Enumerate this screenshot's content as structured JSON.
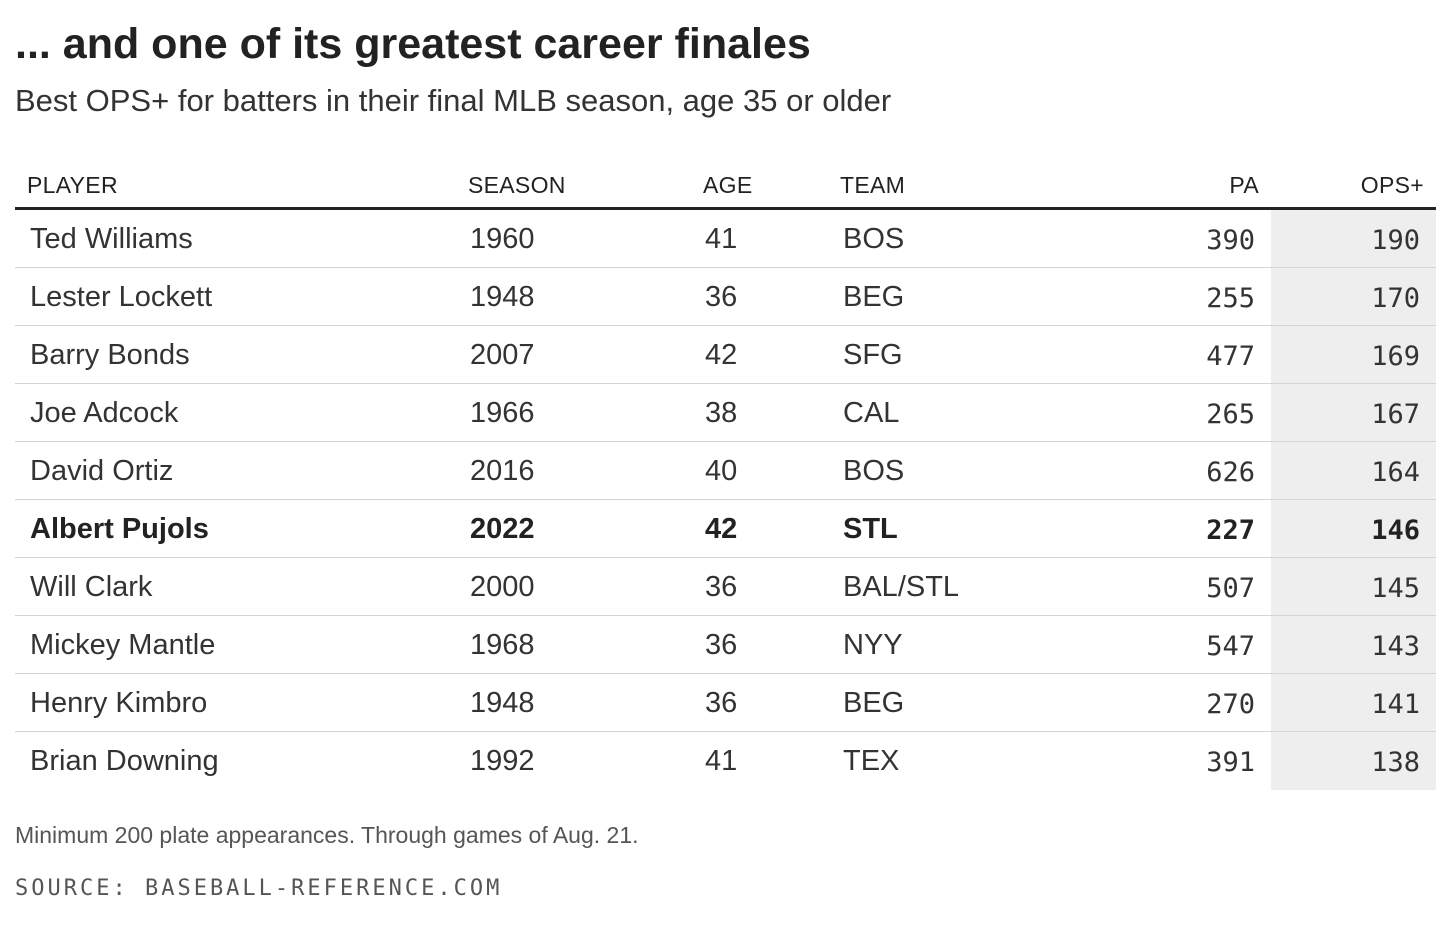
{
  "chart_data": {
    "type": "table",
    "title": "... and one of its greatest career finales",
    "subtitle": "Best OPS+ for batters in their final MLB season, age 35 or older",
    "columns": [
      "PLAYER",
      "SEASON",
      "AGE",
      "TEAM",
      "PA",
      "OPS+"
    ],
    "rows": [
      {
        "player": "Ted Williams",
        "season": "1960",
        "age": "41",
        "team": "BOS",
        "pa": "390",
        "ops": "190",
        "highlight": false
      },
      {
        "player": "Lester Lockett",
        "season": "1948",
        "age": "36",
        "team": "BEG",
        "pa": "255",
        "ops": "170",
        "highlight": false
      },
      {
        "player": "Barry Bonds",
        "season": "2007",
        "age": "42",
        "team": "SFG",
        "pa": "477",
        "ops": "169",
        "highlight": false
      },
      {
        "player": "Joe Adcock",
        "season": "1966",
        "age": "38",
        "team": "CAL",
        "pa": "265",
        "ops": "167",
        "highlight": false
      },
      {
        "player": "David Ortiz",
        "season": "2016",
        "age": "40",
        "team": "BOS",
        "pa": "626",
        "ops": "164",
        "highlight": false
      },
      {
        "player": "Albert Pujols",
        "season": "2022",
        "age": "42",
        "team": "STL",
        "pa": "227",
        "ops": "146",
        "highlight": true
      },
      {
        "player": "Will Clark",
        "season": "2000",
        "age": "36",
        "team": "BAL/STL",
        "pa": "507",
        "ops": "145",
        "highlight": false
      },
      {
        "player": "Mickey Mantle",
        "season": "1968",
        "age": "36",
        "team": "NYY",
        "pa": "547",
        "ops": "143",
        "highlight": false
      },
      {
        "player": "Henry Kimbro",
        "season": "1948",
        "age": "36",
        "team": "BEG",
        "pa": "270",
        "ops": "141",
        "highlight": false
      },
      {
        "player": "Brian Downing",
        "season": "1992",
        "age": "41",
        "team": "TEX",
        "pa": "391",
        "ops": "138",
        "highlight": false
      }
    ],
    "note": "Minimum 200 plate appearances. Through games of Aug. 21.",
    "source": "SOURCE: BASEBALL-REFERENCE.COM"
  },
  "colors": {
    "text": "#222222",
    "ops_column_background": "#eeeeee",
    "row_divider": "#d4d4d4"
  }
}
